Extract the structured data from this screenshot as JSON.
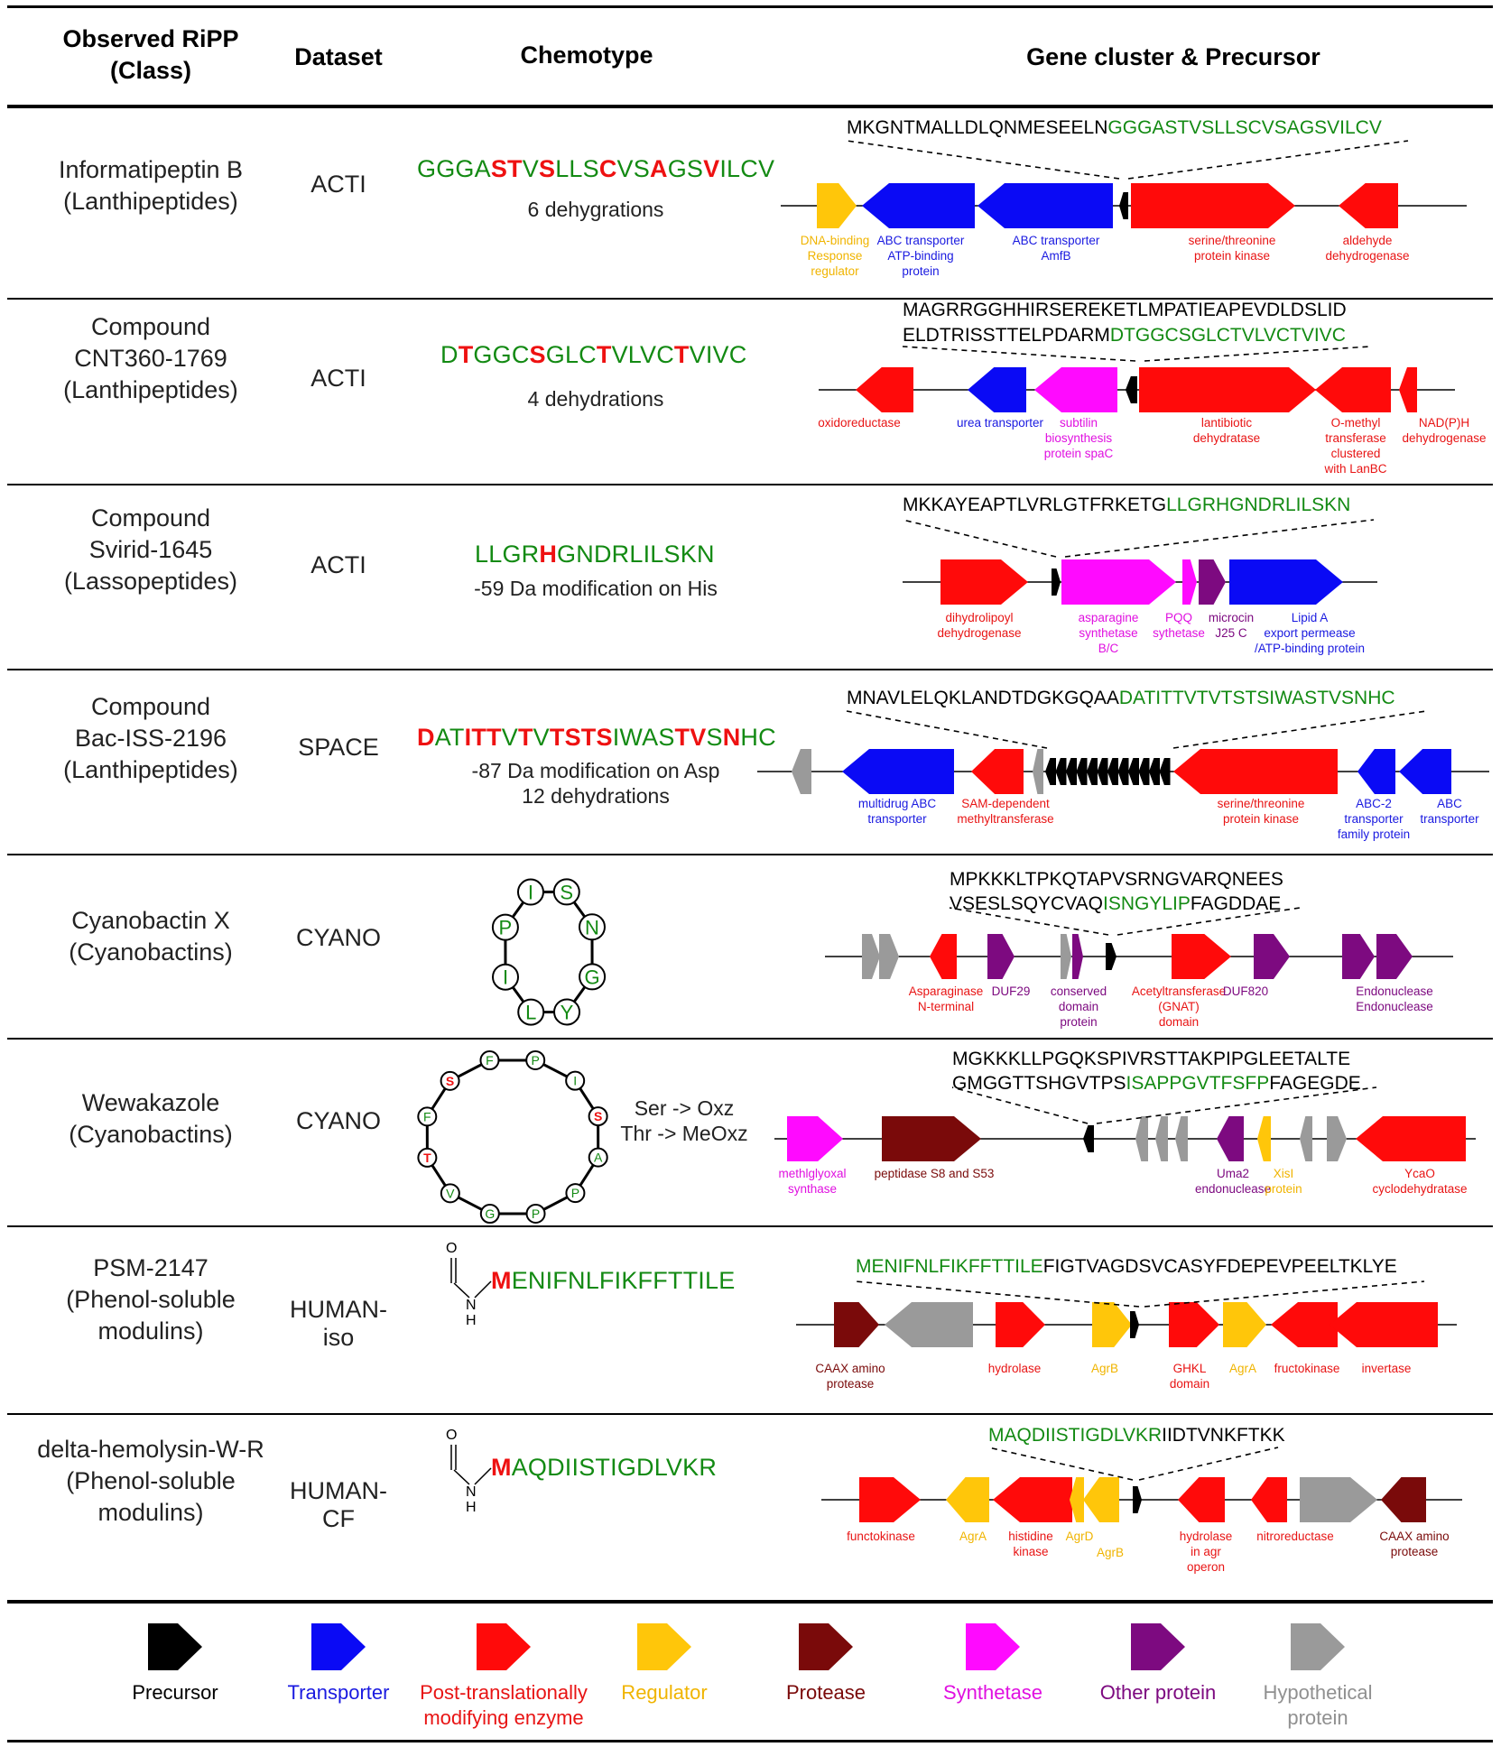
{
  "headers": {
    "ripp": [
      "Observed RiPP",
      "(Class)"
    ],
    "dataset": "Dataset",
    "chemotype": "Chemotype",
    "cluster": "Gene cluster & Precursor"
  },
  "colors": {
    "precursor": "#000000",
    "transporter": "#0a0af5",
    "ptm": "#ff0a0a",
    "regulator": "#ffc60a",
    "protease": "#7a0a0a",
    "synthetase": "#ff0aff",
    "other": "#7d0a80",
    "hypothetical": "#9a9a9a",
    "chem_green": "#138a13",
    "chem_red": "#ee1111"
  },
  "rows": [
    {
      "name": [
        "Informatipeptin B",
        "(Lanthipeptides)"
      ],
      "dataset": "ACTI",
      "chem": "GGGASTVSLLSCVSAGSVILCV",
      "chem_red": [
        4,
        5,
        7,
        11,
        14,
        17
      ],
      "chem_color": "green",
      "notes": [
        "6 dehygrations"
      ],
      "precursor_lines": [
        [
          [
            "k",
            "MKGNTMALLDLQNMESEELN"
          ],
          [
            "g",
            "GGGASTVSLLSCVSAGSVILCV"
          ]
        ]
      ],
      "gene_labels": [
        {
          "cat": "regulator",
          "text": [
            "DNA-binding",
            "Response",
            "regulator"
          ]
        },
        {
          "cat": "transporter",
          "text": [
            "ABC transporter",
            "ATP-binding",
            "protein"
          ]
        },
        {
          "cat": "transporter",
          "text": [
            "ABC transporter",
            "AmfB"
          ]
        },
        {
          "cat": "ptm",
          "text": [
            "serine/threonine",
            "protein kinase"
          ]
        },
        {
          "cat": "ptm",
          "text": [
            "aldehyde",
            "dehydrogenase"
          ]
        }
      ]
    },
    {
      "name": [
        "Compound",
        "CNT360-1769",
        "(Lanthipeptides)"
      ],
      "dataset": "ACTI",
      "chem": "DTGGCSGLCTVLVCTVIVC",
      "chem_red": [
        1,
        5,
        9,
        14
      ],
      "chem_color": "green",
      "notes": [
        "4 dehydrations"
      ],
      "precursor_lines": [
        [
          [
            "k",
            "MAGRRGGHHIRSEREKETLMPATIEAPEVDLDSLID"
          ]
        ],
        [
          [
            "k",
            "ELDTRISSTTELPDARM"
          ],
          [
            "g",
            "DTGGCSGLCTVLVCTVIVC"
          ]
        ]
      ],
      "gene_labels": [
        {
          "cat": "ptm",
          "text": [
            "oxidoreductase"
          ]
        },
        {
          "cat": "transporter",
          "text": [
            "urea transporter"
          ]
        },
        {
          "cat": "synthetase",
          "text": [
            "subtilin",
            "biosynthesis",
            "protein spaC"
          ]
        },
        {
          "cat": "ptm",
          "text": [
            "lantibiotic",
            "dehydratase"
          ]
        },
        {
          "cat": "ptm",
          "text": [
            "O-methyl",
            "transferase",
            "clustered",
            "with LanBC"
          ]
        },
        {
          "cat": "ptm",
          "text": [
            "NAD(P)H",
            "dehydrogenase"
          ]
        }
      ]
    },
    {
      "name": [
        "Compound",
        "Svirid-1645",
        "(Lassopeptides)"
      ],
      "dataset": "ACTI",
      "chem": "LLGRHGNDRLILSKN",
      "chem_red": [
        4
      ],
      "chem_color": "green",
      "notes": [
        "-59 Da modification on His"
      ],
      "precursor_lines": [
        [
          [
            "k",
            "MKKAYEAPTLVRLGTFRKETG"
          ],
          [
            "g",
            "LLGRHGNDRLILSKN"
          ]
        ]
      ],
      "gene_labels": [
        {
          "cat": "ptm",
          "text": [
            "dihydrolipoyl",
            "dehydrogenase"
          ]
        },
        {
          "cat": "synthetase",
          "text": [
            "asparagine",
            "synthetase",
            "B/C"
          ]
        },
        {
          "cat": "synthetase",
          "text": [
            "PQQ",
            "sythetase"
          ]
        },
        {
          "cat": "other",
          "text": [
            "microcin",
            "J25 C"
          ]
        },
        {
          "cat": "transporter",
          "text": [
            "Lipid A",
            "export permease",
            "/ATP-binding protein"
          ]
        }
      ]
    },
    {
      "name": [
        "Compound",
        "Bac-ISS-2196",
        "(Lanthipeptides)"
      ],
      "dataset": "SPACE",
      "chem": "DATITTVTVTSTSIWASTVSNHC",
      "chem_red": [
        0,
        3,
        4,
        5,
        7,
        9,
        10,
        11,
        12,
        17,
        18,
        20
      ],
      "chem_color": "green",
      "notes": [
        "-87 Da modification on Asp",
        "12 dehydrations"
      ],
      "precursor_lines": [
        [
          [
            "k",
            "MNAVLELQKLANDTDGKGQAA"
          ],
          [
            "g",
            "DATITTVTVTSTSIWASTVSNHC"
          ]
        ]
      ],
      "gene_labels": [
        {
          "cat": "transporter",
          "text": [
            "multidrug ABC",
            "transporter"
          ]
        },
        {
          "cat": "ptm",
          "text": [
            "SAM-dependent",
            "methyltransferase"
          ]
        },
        {
          "cat": "ptm",
          "text": [
            "serine/threonine",
            "protein kinase"
          ]
        },
        {
          "cat": "transporter",
          "text": [
            "ABC-2",
            "transporter",
            "family protein"
          ]
        },
        {
          "cat": "transporter",
          "text": [
            "ABC",
            "transporter"
          ]
        }
      ]
    },
    {
      "name": [
        "Cyanobactin X",
        "(Cyanobactins)"
      ],
      "dataset": "CYANO",
      "ring": [
        "S",
        "N",
        "G",
        "Y",
        "L",
        "I",
        "P",
        "I"
      ],
      "precursor_lines": [
        [
          [
            "k",
            "MPKKKLTPKQTAPVSRNGVARQNEES"
          ]
        ],
        [
          [
            "k",
            "VSESLSQYCVAQ"
          ],
          [
            "g",
            "ISNGYLIP"
          ],
          [
            "k",
            "FAGDDAE"
          ]
        ]
      ],
      "gene_labels": [
        {
          "cat": "ptm",
          "text": [
            "Asparaginase",
            "N-terminal"
          ]
        },
        {
          "cat": "other",
          "text": [
            "DUF29"
          ]
        },
        {
          "cat": "other",
          "text": [
            "conserved",
            "domain",
            "protein"
          ]
        },
        {
          "cat": "ptm",
          "text": [
            "Acetyltransferase",
            "(GNAT)",
            "domain"
          ]
        },
        {
          "cat": "other",
          "text": [
            "DUF820"
          ]
        },
        {
          "cat": "other",
          "text": [
            "Endonuclease"
          ]
        },
        {
          "cat": "other",
          "text": [
            "Endonuclease"
          ]
        }
      ]
    },
    {
      "name": [
        "Wewakazole",
        "(Cyanobactins)"
      ],
      "dataset": "CYANO",
      "ring": [
        "P",
        "I",
        "S",
        "A",
        "P",
        "P",
        "G",
        "V",
        "T",
        "F",
        "S",
        "F"
      ],
      "ring_red": [
        2,
        8,
        10
      ],
      "mods": [
        "Ser -> Oxz",
        "Thr -> MeOxz"
      ],
      "precursor_lines": [
        [
          [
            "k",
            "MGKKKLLPGQKSPIVRSTTAKPIPGLEETALTE"
          ]
        ],
        [
          [
            "k",
            "GMGGTTSHGVTPS"
          ],
          [
            "g",
            "ISAPPGVTFSFP"
          ],
          [
            "k",
            "FAGEGDE"
          ]
        ]
      ],
      "gene_labels": [
        {
          "cat": "synthetase",
          "text": [
            "methlglyoxal",
            "synthase"
          ]
        },
        {
          "cat": "protease",
          "text": [
            "peptidase S8 and S53"
          ]
        },
        {
          "cat": "other",
          "text": [
            "Uma2",
            "endonuclease"
          ]
        },
        {
          "cat": "regulator",
          "text": [
            "XisI",
            "protein"
          ]
        },
        {
          "cat": "ptm",
          "text": [
            "YcaO",
            "cyclodehydratase"
          ]
        }
      ]
    },
    {
      "name": [
        "PSM-2147",
        "(Phenol-soluble",
        "modulins)"
      ],
      "dataset": "HUMAN-iso",
      "chem_first": "M",
      "chem_rest": "ENIFNLFIKFFTTILE",
      "precursor_lines": [
        [
          [
            "g",
            "MENIFNLFIKFFTTILE"
          ],
          [
            "k",
            "FIGTVAGDSVCASYFDEPEVPEELTKLYE"
          ]
        ]
      ],
      "gene_labels": [
        {
          "cat": "protease",
          "text": [
            "CAAX amino",
            "protease"
          ]
        },
        {
          "cat": "ptm",
          "text": [
            "hydrolase"
          ]
        },
        {
          "cat": "regulator",
          "text": [
            "AgrB"
          ]
        },
        {
          "cat": "ptm",
          "text": [
            "GHKL",
            "domain"
          ]
        },
        {
          "cat": "regulator",
          "text": [
            "AgrA"
          ]
        },
        {
          "cat": "ptm",
          "text": [
            "fructokinase"
          ]
        },
        {
          "cat": "ptm",
          "text": [
            "invertase"
          ]
        }
      ]
    },
    {
      "name": [
        "delta-hemolysin-W-R",
        "(Phenol-soluble",
        "modulins)"
      ],
      "dataset": "HUMAN-CF",
      "chem_first": "M",
      "chem_rest": "AQDIISTIGDLVKR",
      "precursor_lines": [
        [
          [
            "g",
            "MAQDIISTIGDLVKR"
          ],
          [
            "k",
            "IIDTVNKFTKK"
          ]
        ]
      ],
      "gene_labels": [
        {
          "cat": "ptm",
          "text": [
            "functokinase"
          ]
        },
        {
          "cat": "regulator",
          "text": [
            "AgrA"
          ]
        },
        {
          "cat": "ptm",
          "text": [
            "histidine",
            "kinase"
          ]
        },
        {
          "cat": "regulator",
          "text": [
            "AgrD"
          ]
        },
        {
          "cat": "regulator",
          "text": [
            "AgrB"
          ]
        },
        {
          "cat": "ptm",
          "text": [
            "hydrolase",
            "in agr",
            "operon"
          ]
        },
        {
          "cat": "ptm",
          "text": [
            "nitroreductase"
          ]
        },
        {
          "cat": "protease",
          "text": [
            "CAAX amino",
            "protease"
          ]
        }
      ]
    }
  ],
  "legend": [
    {
      "cat": "precursor",
      "text": [
        "Precursor"
      ]
    },
    {
      "cat": "transporter",
      "text": [
        "Transporter"
      ]
    },
    {
      "cat": "ptm",
      "text": [
        "Post-translationally",
        "modifying enzyme"
      ]
    },
    {
      "cat": "regulator",
      "text": [
        "Regulator"
      ]
    },
    {
      "cat": "protease",
      "text": [
        "Protease"
      ]
    },
    {
      "cat": "synthetase",
      "text": [
        "Synthetase"
      ]
    },
    {
      "cat": "other",
      "text": [
        "Other protein"
      ]
    },
    {
      "cat": "hypothetical",
      "text": [
        "Hypothetical",
        "protein"
      ]
    }
  ]
}
